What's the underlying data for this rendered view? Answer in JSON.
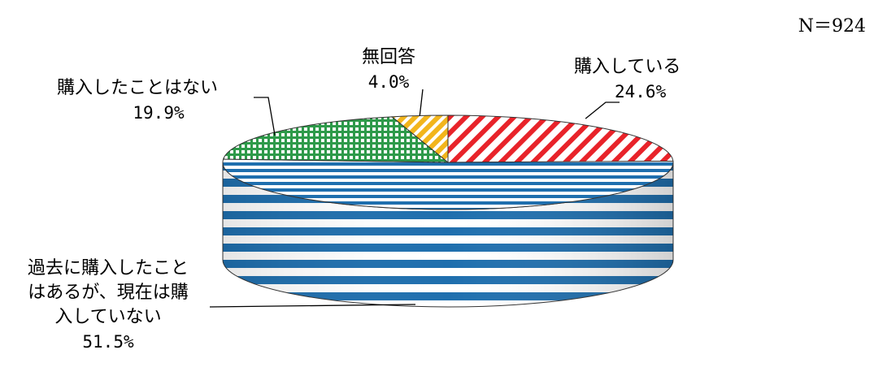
{
  "n_label": "N＝924",
  "chart_data": {
    "type": "pie",
    "slices": [
      {
        "label": "購入している",
        "value": 24.6,
        "value_label": "24.6%",
        "color": "#e8232a",
        "pattern": "diagonal-stripes"
      },
      {
        "label": "過去に購入したことはあるが、現在は購入していない",
        "label_lines": [
          "過去に購入したこと",
          "はあるが、現在は購",
          "入していない"
        ],
        "value": 51.5,
        "value_label": "51.5%",
        "color": "#1f6fae",
        "pattern": "horizontal-stripes"
      },
      {
        "label": "購入したことはない",
        "value": 19.9,
        "value_label": "19.9%",
        "color": "#2e9a4a",
        "pattern": "grid"
      },
      {
        "label": "無回答",
        "value": 4.0,
        "value_label": "4.0%",
        "color": "#f2b51c",
        "pattern": "diagonal-stripes"
      }
    ],
    "start": "12 o'clock, clockwise",
    "style": "3d"
  }
}
